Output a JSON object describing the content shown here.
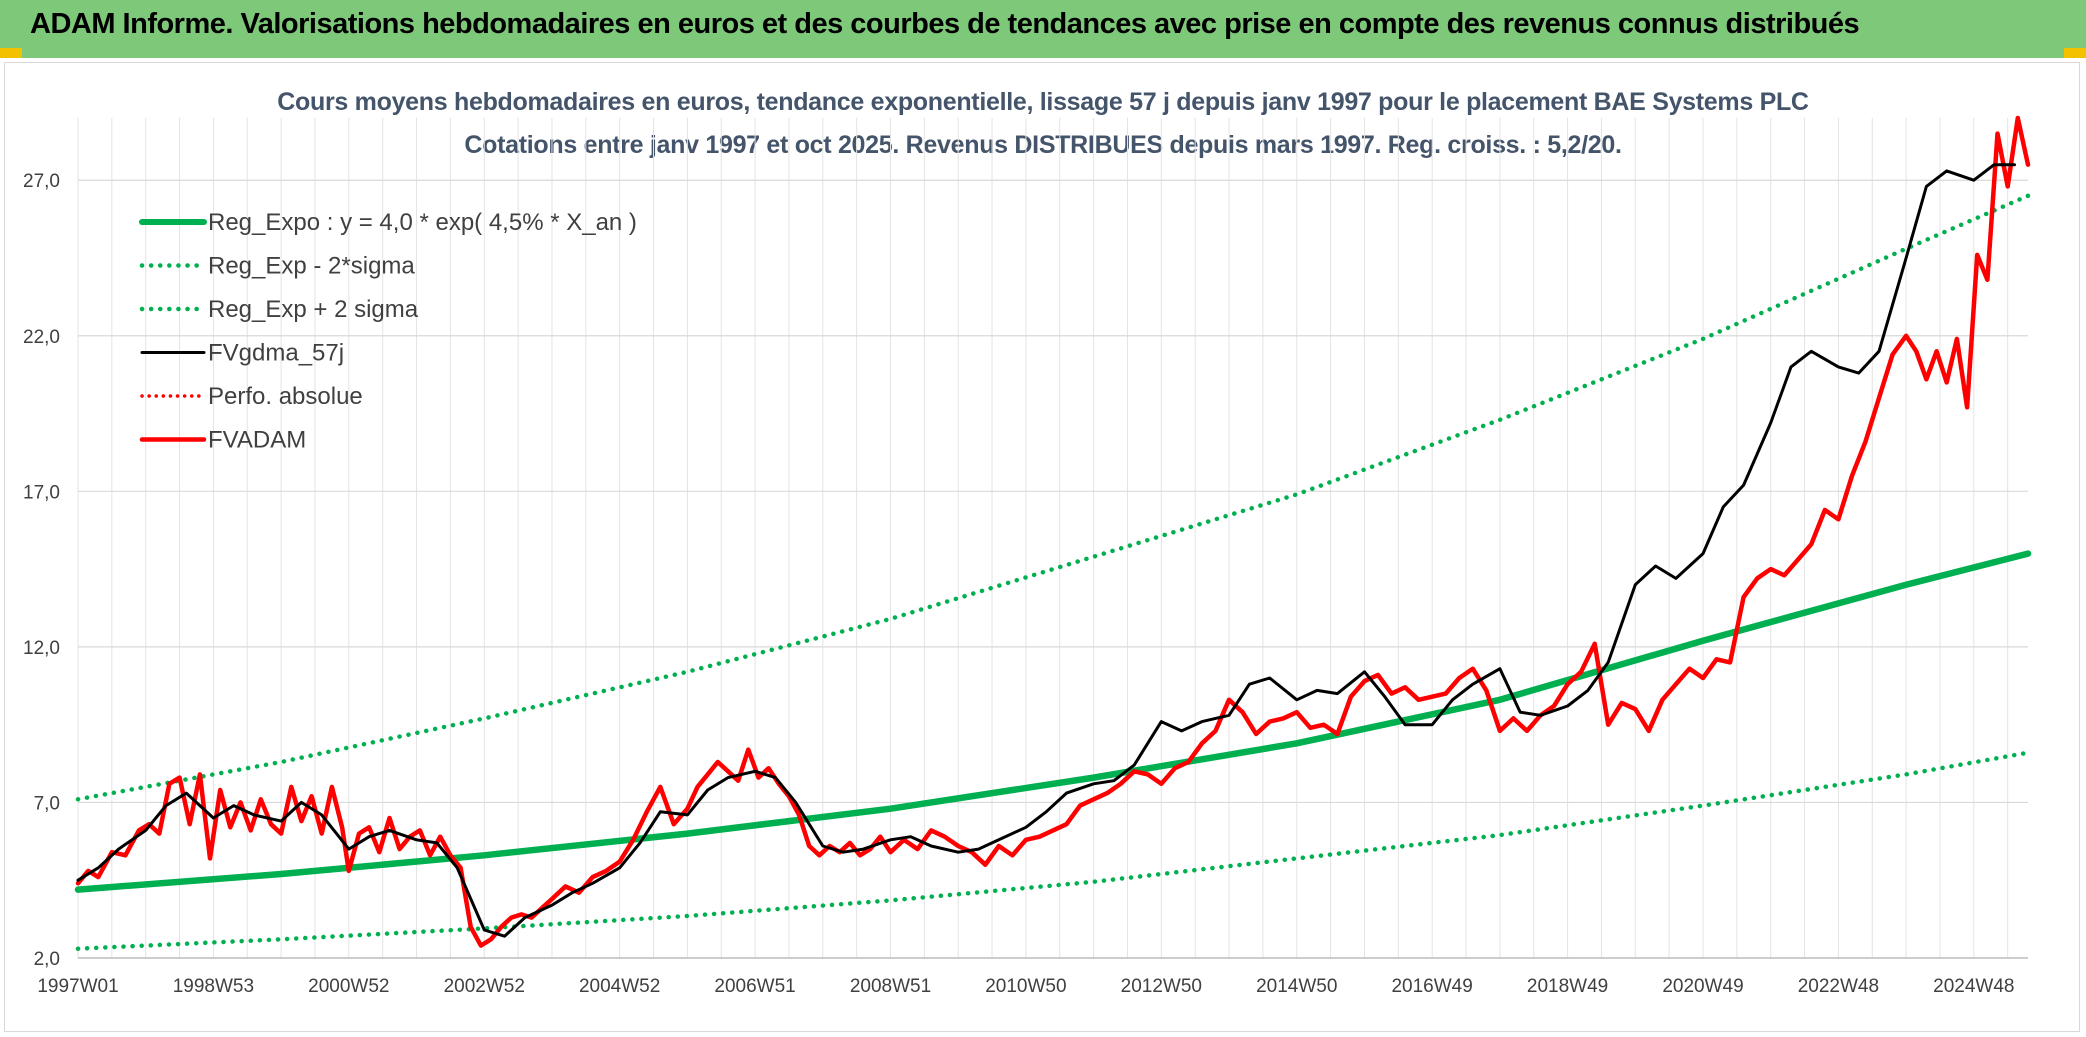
{
  "banner": {
    "title": "ADAM Informe. Valorisations hebdomadaires en euros et des courbes de tendances avec prise en compte des revenus connus distribués"
  },
  "chart_data": {
    "type": "line",
    "title": "Cours moyens hebdomadaires en euros, tendance exponentielle, lissage 57 j depuis janv 1997 pour le placement BAE Systems PLC",
    "subtitle": "Cotations entre janv 1997 et oct 2025. Revenus DISTRIBUES depuis mars 1997. Reg. croiss. : 5,2/20.",
    "ylim": [
      2.0,
      29.0
    ],
    "yticks": [
      "2,0",
      "7,0",
      "12,0",
      "17,0",
      "22,0",
      "27,0"
    ],
    "ytick_values": [
      2,
      7,
      12,
      17,
      22,
      27
    ],
    "xlim": [
      1997.0,
      2025.8
    ],
    "xticks": [
      "1997W01",
      "1998W53",
      "2000W52",
      "2002W52",
      "2004W52",
      "2006W51",
      "2008W51",
      "2010W50",
      "2012W50",
      "2014W50",
      "2016W49",
      "2018W49",
      "2020W49",
      "2022W48",
      "2024W48"
    ],
    "xtick_values": [
      1997.0,
      1999.0,
      2001.0,
      2003.0,
      2005.0,
      2007.0,
      2009.0,
      2011.0,
      2013.0,
      2015.0,
      2017.0,
      2019.0,
      2021.0,
      2023.0,
      2025.0
    ],
    "grid": true,
    "legend_position": "top-left",
    "colors": {
      "green": "#00b050",
      "black": "#000000",
      "red": "#ff0000",
      "title": "#44546a",
      "banner": "#7ec87a"
    },
    "series": [
      {
        "name": "Reg_Expo : y = 4,0 * exp( 4,5% *  X_an )",
        "style": "thick-solid",
        "color": "#00b050",
        "x": [
          1997,
          2000,
          2003,
          2006,
          2009,
          2012,
          2015,
          2018,
          2021,
          2024,
          2025.8
        ],
        "values": [
          4.2,
          4.7,
          5.3,
          6.0,
          6.8,
          7.8,
          8.9,
          10.3,
          12.2,
          14.0,
          15.0
        ]
      },
      {
        "name": "Reg_Exp - 2*sigma",
        "style": "dotted",
        "color": "#00b050",
        "x": [
          1997,
          2000,
          2003,
          2006,
          2009,
          2012,
          2015,
          2018,
          2021,
          2024,
          2025.8
        ],
        "values": [
          2.3,
          2.6,
          2.95,
          3.35,
          3.85,
          4.45,
          5.2,
          5.95,
          6.9,
          7.9,
          8.6
        ]
      },
      {
        "name": "Reg_Exp + 2 sigma",
        "style": "dotted",
        "color": "#00b050",
        "x": [
          1997,
          2000,
          2003,
          2006,
          2009,
          2012,
          2015,
          2018,
          2021,
          2024,
          2025.8
        ],
        "values": [
          7.1,
          8.3,
          9.7,
          11.2,
          12.9,
          14.9,
          16.9,
          19.3,
          21.9,
          24.8,
          26.5
        ]
      },
      {
        "name": "FVgdma_57j",
        "style": "solid",
        "color": "#000000",
        "x": [
          1997.0,
          1997.3,
          1997.6,
          1998.0,
          1998.3,
          1998.6,
          1999.0,
          1999.3,
          1999.6,
          2000.0,
          2000.3,
          2000.6,
          2001.0,
          2001.3,
          2001.6,
          2002.0,
          2002.3,
          2002.6,
          2003.0,
          2003.3,
          2003.6,
          2004.0,
          2004.3,
          2004.6,
          2005.0,
          2005.3,
          2005.6,
          2006.0,
          2006.3,
          2006.6,
          2007.0,
          2007.3,
          2007.6,
          2008.0,
          2008.3,
          2008.6,
          2009.0,
          2009.3,
          2009.6,
          2010.0,
          2010.3,
          2010.6,
          2011.0,
          2011.3,
          2011.6,
          2012.0,
          2012.3,
          2012.6,
          2013.0,
          2013.3,
          2013.6,
          2014.0,
          2014.3,
          2014.6,
          2015.0,
          2015.3,
          2015.6,
          2016.0,
          2016.3,
          2016.6,
          2017.0,
          2017.3,
          2017.6,
          2018.0,
          2018.3,
          2018.6,
          2019.0,
          2019.3,
          2019.6,
          2020.0,
          2020.3,
          2020.6,
          2021.0,
          2021.3,
          2021.6,
          2022.0,
          2022.3,
          2022.6,
          2023.0,
          2023.3,
          2023.6,
          2024.0,
          2024.3,
          2024.6,
          2025.0,
          2025.3,
          2025.6
        ],
        "values": [
          4.5,
          4.9,
          5.5,
          6.1,
          6.9,
          7.3,
          6.5,
          6.9,
          6.6,
          6.4,
          7.0,
          6.6,
          5.5,
          5.9,
          6.1,
          5.8,
          5.7,
          4.9,
          2.9,
          2.7,
          3.3,
          3.7,
          4.1,
          4.4,
          4.9,
          5.7,
          6.7,
          6.6,
          7.4,
          7.8,
          8.0,
          7.8,
          7.0,
          5.6,
          5.4,
          5.5,
          5.8,
          5.9,
          5.6,
          5.4,
          5.5,
          5.8,
          6.2,
          6.7,
          7.3,
          7.6,
          7.7,
          8.2,
          9.6,
          9.3,
          9.6,
          9.8,
          10.8,
          11.0,
          10.3,
          10.6,
          10.5,
          11.2,
          10.4,
          9.5,
          9.5,
          10.3,
          10.8,
          11.3,
          9.9,
          9.8,
          10.1,
          10.6,
          11.5,
          14.0,
          14.6,
          14.2,
          15.0,
          16.5,
          17.2,
          19.2,
          21.0,
          21.5,
          21.0,
          20.8,
          21.5,
          24.5,
          26.8,
          27.3,
          27.0,
          27.5,
          27.5
        ]
      },
      {
        "name": "Perfo. absolue",
        "style": "dotted",
        "color": "#ff0000",
        "x": [],
        "values": []
      },
      {
        "name": "FVADAM",
        "style": "thick-solid",
        "color": "#ff0000",
        "x": [
          1997.0,
          1997.15,
          1997.3,
          1997.5,
          1997.7,
          1997.9,
          1998.05,
          1998.2,
          1998.35,
          1998.5,
          1998.65,
          1998.8,
          1998.95,
          1999.1,
          1999.25,
          1999.4,
          1999.55,
          1999.7,
          1999.85,
          2000.0,
          2000.15,
          2000.3,
          2000.45,
          2000.6,
          2000.75,
          2000.9,
          2001.0,
          2001.15,
          2001.3,
          2001.45,
          2001.6,
          2001.75,
          2001.9,
          2002.05,
          2002.2,
          2002.35,
          2002.5,
          2002.65,
          2002.8,
          2002.95,
          2003.1,
          2003.25,
          2003.4,
          2003.55,
          2003.7,
          2003.85,
          2004.0,
          2004.2,
          2004.4,
          2004.6,
          2004.8,
          2005.0,
          2005.2,
          2005.4,
          2005.6,
          2005.8,
          2006.0,
          2006.15,
          2006.3,
          2006.45,
          2006.6,
          2006.75,
          2006.9,
          2007.05,
          2007.2,
          2007.35,
          2007.5,
          2007.65,
          2007.8,
          2007.95,
          2008.1,
          2008.25,
          2008.4,
          2008.55,
          2008.7,
          2008.85,
          2009.0,
          2009.2,
          2009.4,
          2009.6,
          2009.8,
          2010.0,
          2010.2,
          2010.4,
          2010.6,
          2010.8,
          2011.0,
          2011.2,
          2011.4,
          2011.6,
          2011.8,
          2012.0,
          2012.2,
          2012.4,
          2012.6,
          2012.8,
          2013.0,
          2013.2,
          2013.4,
          2013.6,
          2013.8,
          2014.0,
          2014.2,
          2014.4,
          2014.6,
          2014.8,
          2015.0,
          2015.2,
          2015.4,
          2015.6,
          2015.8,
          2016.0,
          2016.2,
          2016.4,
          2016.6,
          2016.8,
          2017.0,
          2017.2,
          2017.4,
          2017.6,
          2017.8,
          2018.0,
          2018.2,
          2018.4,
          2018.6,
          2018.8,
          2019.0,
          2019.2,
          2019.4,
          2019.6,
          2019.8,
          2020.0,
          2020.2,
          2020.4,
          2020.6,
          2020.8,
          2021.0,
          2021.2,
          2021.4,
          2021.6,
          2021.8,
          2022.0,
          2022.2,
          2022.4,
          2022.6,
          2022.8,
          2023.0,
          2023.2,
          2023.4,
          2023.6,
          2023.8,
          2024.0,
          2024.15,
          2024.3,
          2024.45,
          2024.6,
          2024.75,
          2024.9,
          2025.05,
          2025.2,
          2025.35,
          2025.5,
          2025.65,
          2025.8
        ],
        "values": [
          4.4,
          4.8,
          4.6,
          5.4,
          5.3,
          6.1,
          6.3,
          6.0,
          7.6,
          7.8,
          6.3,
          7.9,
          5.2,
          7.4,
          6.2,
          7.0,
          6.1,
          7.1,
          6.3,
          6.0,
          7.5,
          6.4,
          7.2,
          6.0,
          7.5,
          6.2,
          4.8,
          6.0,
          6.2,
          5.4,
          6.5,
          5.5,
          5.9,
          6.1,
          5.3,
          5.9,
          5.3,
          4.9,
          3.0,
          2.4,
          2.6,
          3.0,
          3.3,
          3.4,
          3.3,
          3.6,
          3.9,
          4.3,
          4.1,
          4.6,
          4.8,
          5.1,
          5.8,
          6.7,
          7.5,
          6.3,
          6.8,
          7.5,
          7.9,
          8.3,
          8.0,
          7.7,
          8.7,
          7.8,
          8.1,
          7.6,
          7.2,
          6.6,
          5.6,
          5.3,
          5.6,
          5.4,
          5.7,
          5.3,
          5.5,
          5.9,
          5.4,
          5.8,
          5.5,
          6.1,
          5.9,
          5.6,
          5.4,
          5.0,
          5.6,
          5.3,
          5.8,
          5.9,
          6.1,
          6.3,
          6.9,
          7.1,
          7.3,
          7.6,
          8.0,
          7.9,
          7.6,
          8.1,
          8.3,
          8.9,
          9.3,
          10.3,
          9.9,
          9.2,
          9.6,
          9.7,
          9.9,
          9.4,
          9.5,
          9.2,
          10.4,
          10.9,
          11.1,
          10.5,
          10.7,
          10.3,
          10.4,
          10.5,
          11.0,
          11.3,
          10.6,
          9.3,
          9.7,
          9.3,
          9.8,
          10.1,
          10.8,
          11.2,
          12.1,
          9.5,
          10.2,
          10.0,
          9.3,
          10.3,
          10.8,
          11.3,
          11.0,
          11.6,
          11.5,
          13.6,
          14.2,
          14.5,
          14.3,
          14.8,
          15.3,
          16.4,
          16.1,
          17.5,
          18.6,
          20.0,
          21.4,
          22.0,
          21.5,
          20.6,
          21.5,
          20.5,
          21.9,
          19.7,
          24.6,
          23.8,
          28.5,
          26.8,
          29.0,
          27.5
        ]
      }
    ]
  }
}
